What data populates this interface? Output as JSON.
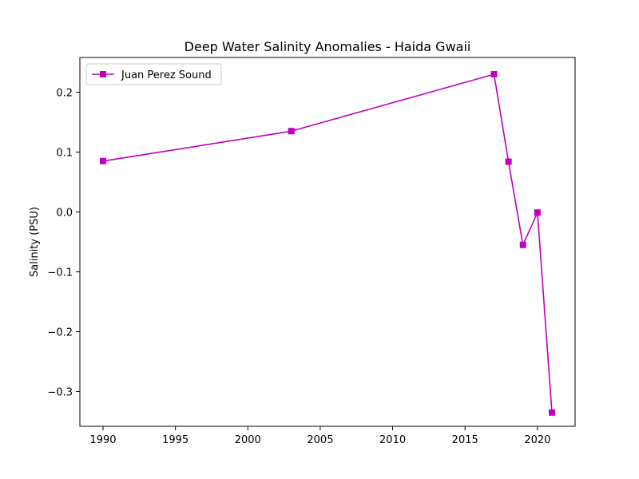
{
  "chart_data": {
    "type": "line",
    "title": "Deep Water Salinity Anomalies - Haida Gwaii",
    "xlabel": "",
    "ylabel": "Salinity (PSU)",
    "xlim": [
      1988.4,
      2022.6
    ],
    "ylim": [
      -0.358,
      0.258
    ],
    "xticks": [
      1990,
      1995,
      2000,
      2005,
      2010,
      2015,
      2020
    ],
    "yticks": [
      -0.3,
      -0.2,
      -0.1,
      0.0,
      0.1,
      0.2
    ],
    "ytick_labels": [
      "−0.3",
      "−0.2",
      "−0.1",
      "0.0",
      "0.1",
      "0.2"
    ],
    "grid": false,
    "legend_position": "upper-left",
    "series": [
      {
        "name": "Juan Perez Sound",
        "color": "#bf00bf",
        "marker": "square",
        "x": [
          1990,
          2003,
          2017,
          2018,
          2019,
          2020,
          2021
        ],
        "y": [
          0.085,
          0.135,
          0.23,
          0.084,
          -0.055,
          -0.001,
          -0.335
        ]
      }
    ]
  }
}
